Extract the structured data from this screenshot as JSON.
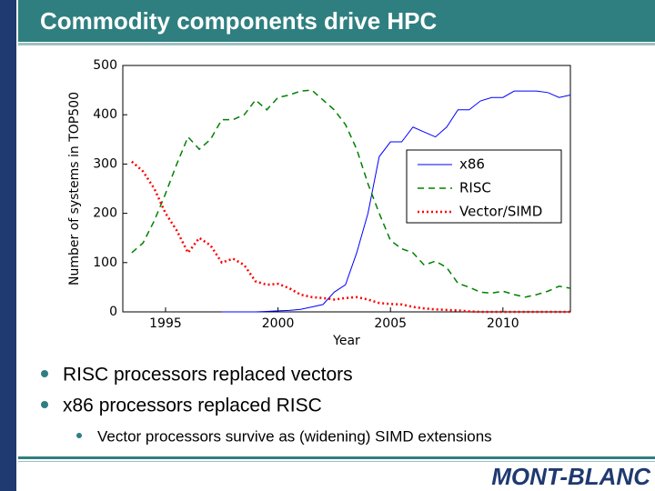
{
  "slide": {
    "title": "Commodity components drive HPC",
    "bullets": [
      {
        "level": 1,
        "text": "RISC processors replaced vectors"
      },
      {
        "level": 1,
        "text": "x86 processors replaced RISC"
      },
      {
        "level": 2,
        "text": "Vector processors survive as (widening) SIMD extensions"
      }
    ],
    "logo": "MONT-BLANC"
  },
  "chart_data": {
    "type": "line",
    "x_label": "Year",
    "y_label": "Number of systems in TOP500",
    "x": [
      1993.5,
      1994,
      1994.5,
      1995,
      1995.5,
      1996,
      1996.5,
      1997,
      1997.5,
      1998,
      1998.5,
      1999,
      1999.5,
      2000,
      2000.5,
      2001,
      2001.5,
      2002,
      2002.5,
      2003,
      2003.5,
      2004,
      2004.5,
      2005,
      2005.5,
      2006,
      2006.5,
      2007,
      2007.5,
      2008,
      2008.5,
      2009,
      2009.5,
      2010,
      2010.5,
      2011,
      2011.5,
      2012,
      2012.5,
      2013
    ],
    "series": [
      {
        "name": "x86",
        "color": "#0000ff",
        "dash": "solid",
        "values": [
          null,
          null,
          null,
          null,
          null,
          null,
          null,
          null,
          0,
          0,
          0,
          0,
          1,
          2,
          3,
          5,
          10,
          15,
          40,
          55,
          120,
          200,
          315,
          345,
          345,
          375,
          365,
          355,
          375,
          410,
          410,
          428,
          435,
          435,
          448,
          448,
          448,
          445,
          435,
          440
        ]
      },
      {
        "name": "RISC",
        "color": "#008000",
        "dash": "dashed",
        "values": [
          120,
          140,
          185,
          240,
          300,
          355,
          330,
          350,
          390,
          390,
          400,
          430,
          410,
          435,
          440,
          448,
          450,
          430,
          410,
          380,
          330,
          260,
          200,
          145,
          128,
          120,
          95,
          103,
          90,
          58,
          50,
          40,
          38,
          42,
          35,
          30,
          35,
          42,
          52,
          48
        ]
      },
      {
        "name": "Vector/SIMD",
        "color": "#ff0000",
        "dash": "dotted",
        "values": [
          305,
          285,
          250,
          200,
          165,
          120,
          150,
          135,
          100,
          108,
          95,
          62,
          55,
          57,
          48,
          35,
          30,
          28,
          25,
          28,
          30,
          25,
          18,
          16,
          15,
          10,
          7,
          5,
          4,
          3,
          1,
          0,
          0,
          0,
          0,
          0,
          0,
          0,
          0,
          0
        ]
      }
    ],
    "xlim": [
      1993.1,
      2013
    ],
    "ylim": [
      0,
      500
    ],
    "xticks": [
      1995,
      2000,
      2005,
      2010
    ],
    "yticks": [
      0,
      100,
      200,
      300,
      400,
      500
    ],
    "legend": "upper right"
  }
}
